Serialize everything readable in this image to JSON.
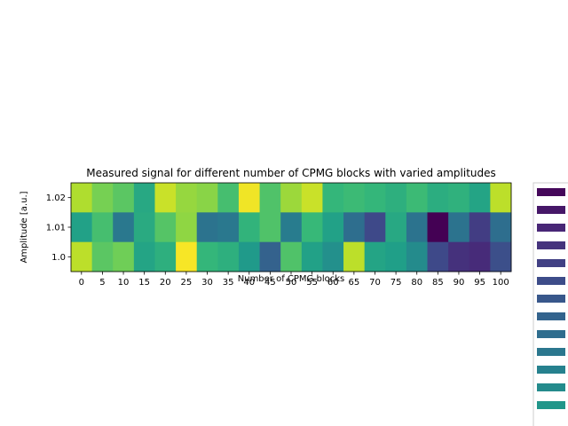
{
  "chart_data": {
    "type": "heatmap",
    "title": "Measured signal for different number of CPMG blocks with varied amplitudes",
    "xlabel": "Number of CPMG blocks",
    "ylabel": "Amplitude [a.u.]",
    "x_categories": [
      "0",
      "5",
      "10",
      "15",
      "20",
      "25",
      "30",
      "35",
      "40",
      "45",
      "50",
      "55",
      "60",
      "65",
      "70",
      "75",
      "80",
      "85",
      "90",
      "95",
      "100"
    ],
    "y_categories": [
      "1.02",
      "1.01",
      "1.0"
    ],
    "values": [
      [
        0.88,
        0.79,
        0.74,
        0.6,
        0.92,
        0.84,
        0.82,
        0.7,
        0.98,
        0.72,
        0.85,
        0.92,
        0.66,
        0.68,
        0.66,
        0.63,
        0.68,
        0.62,
        0.64,
        0.58,
        0.9
      ],
      [
        0.57,
        0.7,
        0.4,
        0.61,
        0.73,
        0.83,
        0.38,
        0.4,
        0.65,
        0.72,
        0.42,
        0.67,
        0.57,
        0.36,
        0.22,
        0.6,
        0.38,
        0.0,
        0.38,
        0.18,
        0.36
      ],
      [
        0.9,
        0.74,
        0.78,
        0.58,
        0.63,
        0.99,
        0.66,
        0.63,
        0.54,
        0.31,
        0.72,
        0.57,
        0.5,
        0.9,
        0.58,
        0.56,
        0.48,
        0.22,
        0.14,
        0.12,
        0.24
      ]
    ],
    "colormap": "viridis",
    "colorbar": {
      "visible_swatches": 13,
      "placement": "right"
    }
  }
}
